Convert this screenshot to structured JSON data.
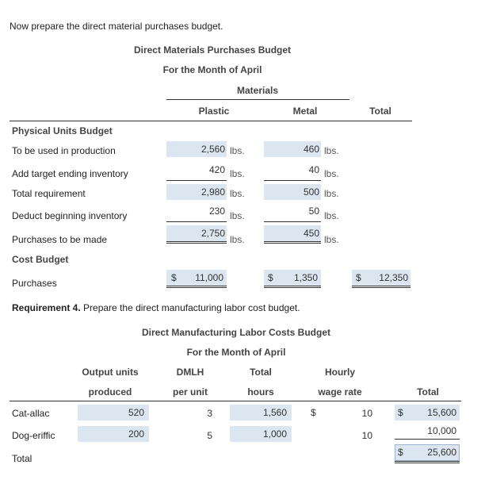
{
  "intro": "Now prepare the direct material purchases budget.",
  "materials": {
    "title": "Direct Materials Purchases Budget",
    "subtitle": "For the Month of April",
    "group_header": "Materials",
    "col_plastic": "Plastic",
    "col_metal": "Metal",
    "col_total": "Total",
    "section_units": "Physical Units Budget",
    "section_cost": "Cost Budget",
    "unit": "lbs.",
    "currency": "$",
    "rows": [
      {
        "label": "To be used in production",
        "plastic": "2,560",
        "metal": "460"
      },
      {
        "label": "Add target ending inventory",
        "plastic": "420",
        "metal": "40"
      },
      {
        "label": "Total requirement",
        "plastic": "2,980",
        "metal": "500"
      },
      {
        "label": "Deduct beginning inventory",
        "plastic": "230",
        "metal": "50"
      },
      {
        "label": "Purchases to be made",
        "plastic": "2,750",
        "metal": "450"
      }
    ],
    "purchases": {
      "label": "Purchases",
      "plastic": "11,000",
      "metal": "1,350",
      "total": "12,350"
    }
  },
  "req4": {
    "bold": "Requirement 4.",
    "text": " Prepare the direct manufacturing labor cost budget."
  },
  "labor": {
    "title": "Direct Manufacturing Labor Costs Budget",
    "subtitle": "For the Month of April",
    "h_output_1": "Output units",
    "h_output_2": "produced",
    "h_dmlh_1": "DMLH",
    "h_dmlh_2": "per unit",
    "h_total_1": "Total",
    "h_total_2": "hours",
    "h_wage_1": "Hourly",
    "h_wage_2": "wage rate",
    "h_cost": "Total",
    "currency": "$",
    "rows": [
      {
        "label": "Cat-allac",
        "units": "520",
        "dmlh": "3",
        "hours": "1,560",
        "wage": "10",
        "total": "15,600"
      },
      {
        "label": "Dog-eriffic",
        "units": "200",
        "dmlh": "5",
        "hours": "1,000",
        "wage": "10",
        "total": "10,000"
      }
    ],
    "total_label": "Total",
    "grand_total": "25,600"
  }
}
